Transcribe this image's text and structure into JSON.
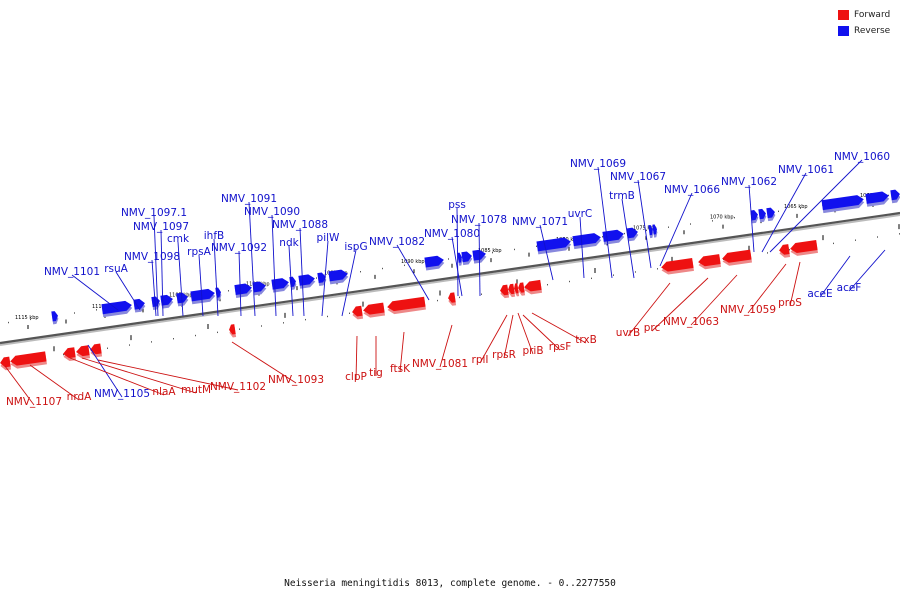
{
  "legend": {
    "forward_label": "Forward",
    "reverse_label": "Reverse",
    "forward_color": "#ee1111",
    "reverse_color": "#1111ee"
  },
  "caption": "Neisseria meningitidis 8013, complete genome. - 0..2277550",
  "backbone": {
    "start_kbp": 1116,
    "end_kbp": 1059,
    "tick_labels": [
      "1115 kbp",
      "1110 kbp",
      "1105 kbp",
      "1100 kbp",
      "1095 kbp",
      "1090 kbp",
      "1085 kbp",
      "1080 kbp",
      "1075 kbp",
      "1070 kbp",
      "1065 kbp",
      "1060 kbp"
    ]
  },
  "reverse_labels": [
    "NMV_1101",
    "rsuA",
    "NMV_1098",
    "NMV_1097.1",
    "NMV_1097",
    "cmk",
    "rpsA",
    "ihfB",
    "NMV_1092",
    "NMV_1091",
    "NMV_1090",
    "ndk",
    "NMV_1088",
    "pilW",
    "ispG",
    "NMV_1082",
    "pss",
    "NMV_1080",
    "NMV_1078",
    "NMV_1071",
    "uvrC",
    "NMV_1069",
    "trmB",
    "NMV_1067",
    "NMV_1066",
    "NMV_1062",
    "NMV_1061",
    "NMV_1060",
    "aceE",
    "aceF",
    "NMV_1105"
  ],
  "forward_labels": [
    "NMV_1107",
    "nrdA",
    "nlaA",
    "mutM",
    "NMV_1102",
    "NMV_1093",
    "clpP",
    "tig",
    "ftsK",
    "NMV_1081",
    "rplI",
    "rpsR",
    "priB",
    "rpsF",
    "trxB",
    "uvrB",
    "prc",
    "NMV_1063",
    "NMV_1059",
    "proS"
  ]
}
